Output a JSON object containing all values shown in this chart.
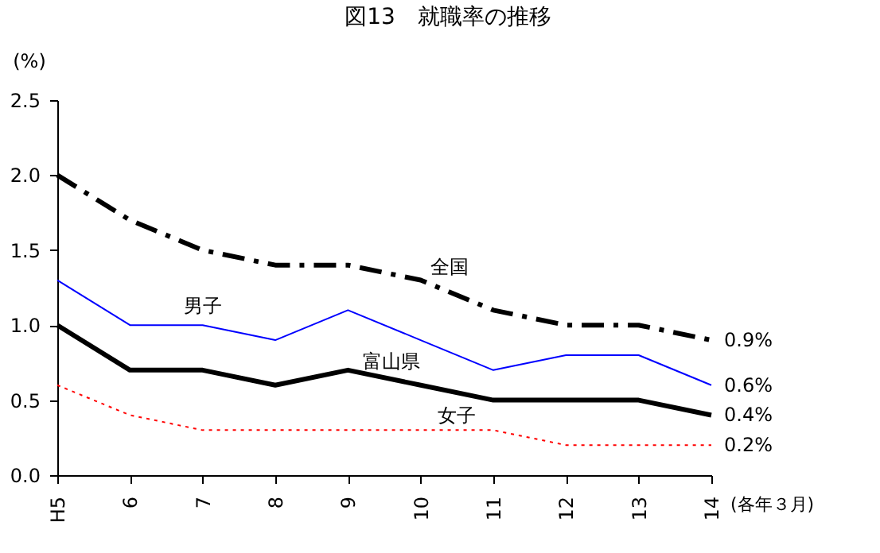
{
  "chart_data": {
    "type": "line",
    "title": "図13　就職率の推移",
    "ylabel": "(%)",
    "categories": [
      "H5",
      "6",
      "7",
      "8",
      "9",
      "10",
      "11",
      "12",
      "13",
      "14"
    ],
    "series": [
      {
        "name": "全国",
        "color": "#000000",
        "line_style": "dashed",
        "values": [
          2.0,
          1.7,
          1.5,
          1.4,
          1.4,
          1.3,
          1.1,
          1.0,
          1.0,
          0.9
        ],
        "value_labels": [
          null,
          null,
          null,
          null,
          null,
          null,
          null,
          null,
          null,
          "0.9%"
        ]
      },
      {
        "name": "男子",
        "color": "#0000ff",
        "line_style": "solid",
        "values": [
          1.3,
          1.0,
          1.0,
          0.9,
          1.1,
          0.9,
          0.7,
          0.8,
          0.8,
          0.6
        ],
        "value_labels": [
          null,
          null,
          null,
          null,
          null,
          null,
          null,
          null,
          null,
          "0.6%"
        ]
      },
      {
        "name": "富山県",
        "color": "#000000",
        "line_style": "solid",
        "values": [
          1.0,
          0.7,
          0.7,
          0.6,
          0.7,
          0.6,
          0.5,
          0.5,
          0.5,
          0.4
        ],
        "value_labels": [
          null,
          null,
          null,
          null,
          null,
          null,
          null,
          null,
          null,
          "0.4%"
        ]
      },
      {
        "name": "女子",
        "color": "#ff0000",
        "line_style": "dotted",
        "values": [
          0.6,
          0.4,
          0.3,
          0.3,
          0.3,
          0.3,
          0.3,
          0.2,
          0.2,
          0.2
        ],
        "value_labels": [
          null,
          null,
          null,
          null,
          null,
          null,
          null,
          null,
          null,
          "0.2%"
        ]
      }
    ],
    "ylim": [
      0.0,
      2.5
    ],
    "yticks": [
      {
        "value": 0,
        "label": "0.0"
      },
      {
        "value": 0.5,
        "label": "0.5"
      },
      {
        "value": 1.0,
        "label": "1.0"
      },
      {
        "value": 1.5,
        "label": "1.5"
      },
      {
        "value": 2.0,
        "label": "2.0"
      },
      {
        "value": 2.5,
        "label": "2.5"
      }
    ],
    "annotations": [
      "(各年３月)"
    ],
    "marker": "none"
  }
}
